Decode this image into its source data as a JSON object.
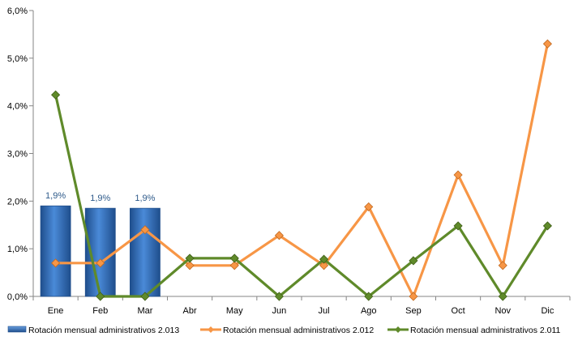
{
  "chart_data": {
    "type": "bar+line",
    "categories": [
      "Ene",
      "Feb",
      "Mar",
      "Abr",
      "May",
      "Jun",
      "Jul",
      "Ago",
      "Sep",
      "Oct",
      "Nov",
      "Dic"
    ],
    "ylim": [
      0,
      6
    ],
    "y_ticks": [
      0,
      1,
      2,
      3,
      4,
      5,
      6
    ],
    "y_tick_labels": [
      "0,0%",
      "1,0%",
      "2,0%",
      "3,0%",
      "4,0%",
      "5,0%",
      "6,0%"
    ],
    "grid": false,
    "legend_position": "bottom",
    "series": [
      {
        "name": "Rotación mensual administrativos 2.013",
        "type": "bar",
        "color": "#2e6fc0",
        "values": [
          1.9,
          1.85,
          1.85,
          null,
          null,
          null,
          null,
          null,
          null,
          null,
          null,
          null
        ],
        "data_labels": [
          "1,9%",
          "1,9%",
          "1,9%"
        ]
      },
      {
        "name": "Rotación mensual administrativos 2.012",
        "type": "line",
        "color": "#f79646",
        "values": [
          0.7,
          0.7,
          1.4,
          0.65,
          0.65,
          1.28,
          0.65,
          1.88,
          0.0,
          2.55,
          0.65,
          5.3
        ]
      },
      {
        "name": "Rotación mensual administrativos 2.011",
        "type": "line",
        "color": "#5f8a2a",
        "values": [
          4.23,
          0.0,
          0.0,
          0.8,
          0.8,
          0.0,
          0.78,
          0.0,
          0.75,
          1.48,
          0.0,
          1.48
        ]
      }
    ]
  }
}
